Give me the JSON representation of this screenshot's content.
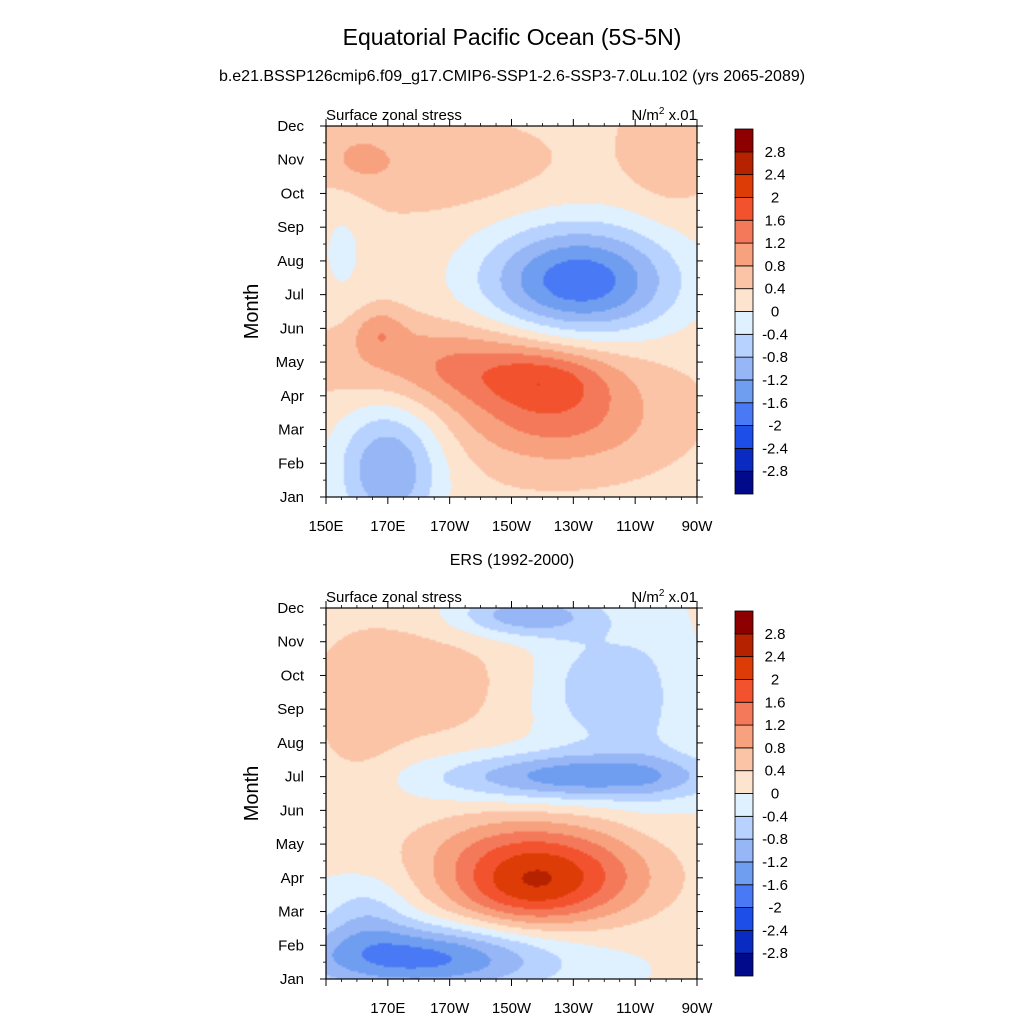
{
  "figure": {
    "title": "Equatorial Pacific Ocean (5S-5N)",
    "subtitle": "b.e21.BSSP126cmip6.f09_g17.CMIP6-SSP1-2.6-SSP3-7.0Lu.102 (yrs 2065-2089)",
    "second_panel_title": "ERS (1992-2000)"
  },
  "chart_data": [
    {
      "type": "heatmap",
      "name": "model",
      "left_label": "Surface zonal stress",
      "units_label": "N/m",
      "units_exp": "2",
      "units_suffix": " x.01",
      "ylabel": "Month",
      "months": [
        "Jan",
        "Feb",
        "Mar",
        "Apr",
        "May",
        "Jun",
        "Jul",
        "Aug",
        "Sep",
        "Oct",
        "Nov",
        "Dec"
      ],
      "lon_ticks": [
        "150E",
        "170E",
        "170W",
        "150W",
        "130W",
        "110W",
        "90W"
      ],
      "lon_range": [
        150,
        270
      ],
      "contour_levels": [
        -2.8,
        -2.4,
        -2,
        -1.6,
        -1.2,
        -0.8,
        -0.4,
        0,
        0.4,
        0.8,
        1.2,
        1.6,
        2,
        2.4,
        2.8
      ],
      "colorbar_labels": [
        "2.8",
        "2.4",
        "2",
        "1.6",
        "1.2",
        "0.8",
        "0.4",
        "0",
        "-0.4",
        "-0.8",
        "-1.2",
        "-1.6",
        "-2",
        "-2.4",
        "-2.8"
      ],
      "background": 0.3,
      "features": [
        {
          "lon": 170,
          "month": 0.8,
          "amp": -1.5,
          "sx": 12,
          "sy": 1.4
        },
        {
          "lon": 225,
          "month": 2.3,
          "amp": 1.0,
          "sx": 22,
          "sy": 1.0
        },
        {
          "lon": 198,
          "month": 3.9,
          "amp": 1.0,
          "sx": 30,
          "sy": 0.9
        },
        {
          "lon": 222,
          "month": 3.5,
          "amp": 0.6,
          "sx": 14,
          "sy": 0.6
        },
        {
          "lon": 167,
          "month": 4.9,
          "amp": 0.6,
          "sx": 6,
          "sy": 0.5
        },
        {
          "lon": 232,
          "month": 6.4,
          "amp": -2.2,
          "sx": 22,
          "sy": 1.2
        },
        {
          "lon": 185,
          "month": 9.8,
          "amp": 0.4,
          "sx": 25,
          "sy": 0.9
        },
        {
          "lon": 155,
          "month": 7.3,
          "amp": -0.4,
          "sx": 6,
          "sy": 1.2
        },
        {
          "lon": 160,
          "month": 10.1,
          "amp": 0.4,
          "sx": 8,
          "sy": 0.6
        },
        {
          "lon": 261,
          "month": 10.3,
          "amp": 0.4,
          "sx": 10,
          "sy": 1.2
        }
      ]
    },
    {
      "type": "heatmap",
      "name": "ERS",
      "left_label": "Surface zonal stress",
      "units_label": "N/m",
      "units_exp": "2",
      "units_suffix": " x.01",
      "ylabel": "Month",
      "months": [
        "Jan",
        "Feb",
        "Mar",
        "Apr",
        "May",
        "Jun",
        "Jul",
        "Aug",
        "Sep",
        "Oct",
        "Nov",
        "Dec"
      ],
      "lon_ticks": [
        "",
        "170E",
        "170W",
        "150W",
        "130W",
        "110W",
        "90W"
      ],
      "lon_range": [
        150,
        270
      ],
      "contour_levels": [
        -2.8,
        -2.4,
        -2,
        -1.6,
        -1.2,
        -0.8,
        -0.4,
        0,
        0.4,
        0.8,
        1.2,
        1.6,
        2,
        2.4,
        2.8
      ],
      "colorbar_labels": [
        "2.8",
        "2.4",
        "2",
        "1.6",
        "1.2",
        "0.8",
        "0.4",
        "0",
        "-0.4",
        "-0.8",
        "-1.2",
        "-1.6",
        "-2",
        "-2.4",
        "-2.8"
      ],
      "background": 0.05,
      "features": [
        {
          "lon": 180,
          "month": 0.6,
          "amp": -1.8,
          "sx": 30,
          "sy": 0.7
        },
        {
          "lon": 163,
          "month": 1.9,
          "amp": -0.6,
          "sx": 10,
          "sy": 0.8
        },
        {
          "lon": 222,
          "month": 3.0,
          "amp": 1.9,
          "sx": 24,
          "sy": 1.0
        },
        {
          "lon": 213,
          "month": 2.4,
          "amp": 0.5,
          "sx": 15,
          "sy": 0.7
        },
        {
          "lon": 208,
          "month": 4.0,
          "amp": 0.5,
          "sx": 22,
          "sy": 0.8
        },
        {
          "lon": 232,
          "month": 6.0,
          "amp": -1.5,
          "sx": 32,
          "sy": 0.5
        },
        {
          "lon": 178,
          "month": 8.8,
          "amp": 0.6,
          "sx": 26,
          "sy": 1.5
        },
        {
          "lon": 160,
          "month": 7.0,
          "amp": 0.3,
          "sx": 10,
          "sy": 2.0
        },
        {
          "lon": 237,
          "month": 8.6,
          "amp": -0.7,
          "sx": 14,
          "sy": 1.3
        },
        {
          "lon": 214,
          "month": 10.8,
          "amp": -1.2,
          "sx": 16,
          "sy": 0.45
        },
        {
          "lon": 255,
          "month": 8.0,
          "amp": -0.3,
          "sx": 8,
          "sy": 2.0
        }
      ]
    }
  ],
  "colors": {
    "neg": [
      "#dff0ff",
      "#b8d2ff",
      "#97b6f6",
      "#6f9df0",
      "#4a79f5",
      "#1d4ee8",
      "#0a2bc1",
      "#000a8a"
    ],
    "pos": [
      "#fde4cf",
      "#fbc4a7",
      "#f7a17e",
      "#f4795a",
      "#f2532e",
      "#de3c06",
      "#b52200",
      "#8e0000"
    ]
  }
}
